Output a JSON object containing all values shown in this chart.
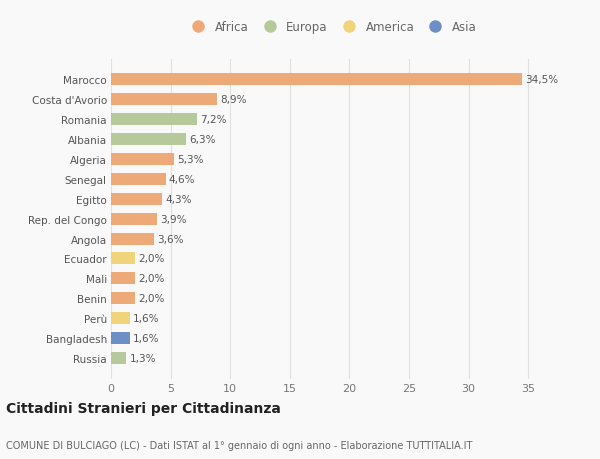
{
  "categories": [
    "Marocco",
    "Costa d'Avorio",
    "Romania",
    "Albania",
    "Algeria",
    "Senegal",
    "Egitto",
    "Rep. del Congo",
    "Angola",
    "Ecuador",
    "Mali",
    "Benin",
    "Perù",
    "Bangladesh",
    "Russia"
  ],
  "values": [
    34.5,
    8.9,
    7.2,
    6.3,
    5.3,
    4.6,
    4.3,
    3.9,
    3.6,
    2.0,
    2.0,
    2.0,
    1.6,
    1.6,
    1.3
  ],
  "labels": [
    "34,5%",
    "8,9%",
    "7,2%",
    "6,3%",
    "5,3%",
    "4,6%",
    "4,3%",
    "3,9%",
    "3,6%",
    "2,0%",
    "2,0%",
    "2,0%",
    "1,6%",
    "1,6%",
    "1,3%"
  ],
  "continent": [
    "Africa",
    "Africa",
    "Europa",
    "Europa",
    "Africa",
    "Africa",
    "Africa",
    "Africa",
    "Africa",
    "America",
    "Africa",
    "Africa",
    "America",
    "Asia",
    "Europa"
  ],
  "colors": {
    "Africa": "#EDAA78",
    "Europa": "#B5C99A",
    "America": "#F0D47A",
    "Asia": "#6E8FC5"
  },
  "legend_order": [
    "Africa",
    "Europa",
    "America",
    "Asia"
  ],
  "xlim": [
    0,
    37
  ],
  "xticks": [
    0,
    5,
    10,
    15,
    20,
    25,
    30,
    35
  ],
  "title": "Cittadini Stranieri per Cittadinanza",
  "subtitle": "COMUNE DI BULCIAGO (LC) - Dati ISTAT al 1° gennaio di ogni anno - Elaborazione TUTTITALIA.IT",
  "background_color": "#f9f9f9",
  "bar_height": 0.6,
  "grid_color": "#e0e0e0",
  "label_fontsize": 7.5,
  "ytick_fontsize": 7.5,
  "xtick_fontsize": 8,
  "title_fontsize": 10,
  "subtitle_fontsize": 7,
  "legend_fontsize": 8.5
}
